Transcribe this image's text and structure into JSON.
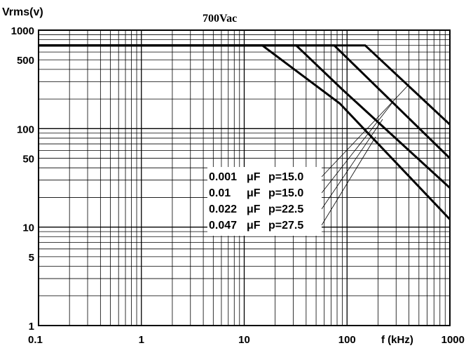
{
  "chart_data": {
    "type": "line",
    "title": "700Vac",
    "ylabel": "Vrms(v)",
    "xlabel": "f (kHz)",
    "x_scale": "log",
    "y_scale": "log",
    "xlim": [
      0.1,
      1000
    ],
    "ylim": [
      1,
      1000
    ],
    "grid": true,
    "x_ticks": [
      {
        "value": 0.1,
        "label": "0.1"
      },
      {
        "value": 1,
        "label": "1"
      },
      {
        "value": 10,
        "label": "10"
      },
      {
        "value": 100,
        "label": "100"
      },
      {
        "value": 1000,
        "label": "1000"
      }
    ],
    "y_ticks": [
      {
        "value": 1000,
        "label": "1000"
      },
      {
        "value": 500,
        "label": "500"
      },
      {
        "value": 100,
        "label": "100"
      },
      {
        "value": 50,
        "label": "50"
      },
      {
        "value": 10,
        "label": "10"
      },
      {
        "value": 5,
        "label": "5"
      },
      {
        "value": 1,
        "label": "1"
      }
    ],
    "legend_position": "center-right",
    "series": [
      {
        "cap": "0.001",
        "unit": "μF",
        "p": "p=15.0",
        "points": [
          [
            0.1,
            700
          ],
          [
            150,
            700
          ],
          [
            1000,
            110
          ]
        ]
      },
      {
        "cap": "0.01",
        "unit": "μF",
        "p": "p=15.0",
        "points": [
          [
            0.1,
            700
          ],
          [
            75,
            700
          ],
          [
            1000,
            50
          ]
        ]
      },
      {
        "cap": "0.022",
        "unit": "μF",
        "p": "p=22.5",
        "points": [
          [
            0.1,
            700
          ],
          [
            32,
            700
          ],
          [
            90,
            250
          ],
          [
            1000,
            25
          ]
        ]
      },
      {
        "cap": "0.047",
        "unit": "μF",
        "p": "p=27.5",
        "points": [
          [
            0.1,
            700
          ],
          [
            15,
            700
          ],
          [
            85,
            180
          ],
          [
            1000,
            12
          ]
        ]
      }
    ]
  }
}
